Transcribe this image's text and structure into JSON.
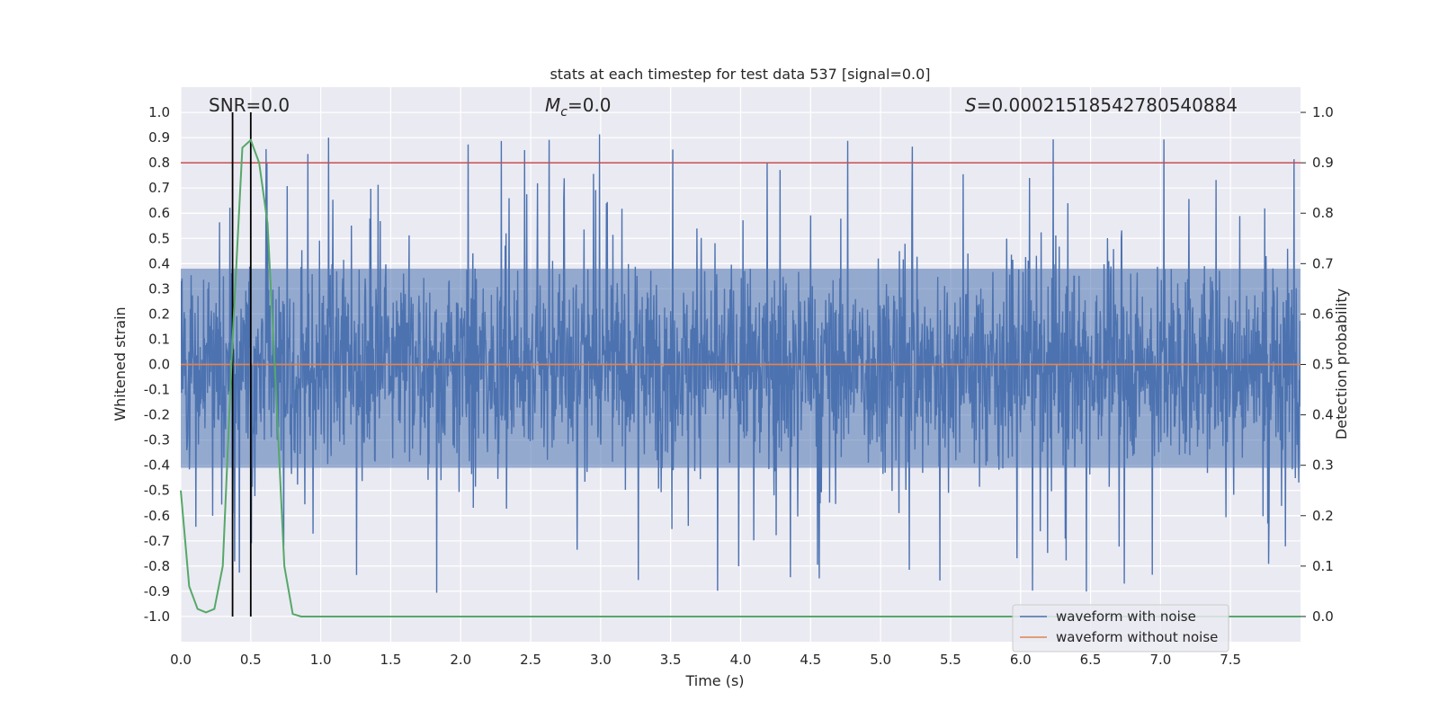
{
  "chart_data": {
    "type": "line",
    "title": "stats at each timestep for test data 537 [signal=0.0]",
    "xlabel": "Time (s)",
    "ylabel": "Whitened strain",
    "y2label": "Detection probability",
    "xlim": [
      0.0,
      8.0
    ],
    "ylim": [
      -1.1,
      1.1
    ],
    "y2lim": [
      -0.05,
      1.05
    ],
    "x_ticks": [
      "0.0",
      "0.5",
      "1.0",
      "1.5",
      "2.0",
      "2.5",
      "3.0",
      "3.5",
      "4.0",
      "4.5",
      "5.0",
      "5.5",
      "6.0",
      "6.5",
      "7.0",
      "7.5"
    ],
    "y_ticks": [
      "1.0",
      "0.9",
      "0.8",
      "0.7",
      "0.6",
      "0.5",
      "0.4",
      "0.3",
      "0.2",
      "0.1",
      "0.0",
      "-0.1",
      "-0.2",
      "-0.3",
      "-0.4",
      "-0.5",
      "-0.6",
      "-0.7",
      "-0.8",
      "-0.9",
      "-1.0"
    ],
    "y2_ticks": [
      "1.0",
      "0.9",
      "0.8",
      "0.7",
      "0.6",
      "0.5",
      "0.4",
      "0.3",
      "0.2",
      "0.1",
      "0.0"
    ],
    "annotations": {
      "snr": "SNR=0.0",
      "mc_symbol": "M",
      "mc_sub": "c",
      "mc_value": "=0.0",
      "s_symbol": "S",
      "s_value": "=0.00021518542780540884"
    },
    "threshold_y2": 0.9,
    "vertical_lines_x": [
      0.37,
      0.5
    ],
    "series": [
      {
        "name": "waveform with noise",
        "color": "#4c72b0",
        "kind": "noise",
        "envelope": 0.45,
        "spike_max": 0.98,
        "spike_min": -0.99
      },
      {
        "name": "waveform without noise",
        "color": "#dd8452",
        "kind": "flat",
        "value": 0.0
      },
      {
        "name": "detection probability",
        "color": "#55a868",
        "axis": "y2",
        "x": [
          0.0,
          0.06,
          0.12,
          0.18,
          0.24,
          0.3,
          0.37,
          0.44,
          0.5,
          0.56,
          0.62,
          0.68,
          0.74,
          0.8,
          0.86,
          0.92,
          8.0
        ],
        "values": [
          0.25,
          0.06,
          0.015,
          0.008,
          0.015,
          0.1,
          0.55,
          0.93,
          0.945,
          0.9,
          0.78,
          0.45,
          0.1,
          0.005,
          0.0,
          0.0,
          0.0
        ]
      }
    ],
    "legend": {
      "position": "lower-right",
      "entries": [
        "waveform with noise",
        "waveform without noise"
      ]
    },
    "background": "#eaeaf2",
    "grid_color": "#ffffff",
    "threshold_color": "#c44e52"
  }
}
